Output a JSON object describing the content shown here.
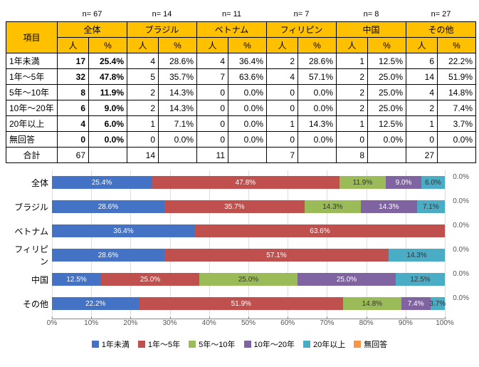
{
  "table": {
    "item_header": "項目",
    "groups": [
      {
        "name": "全体",
        "n": "n= 67",
        "people": "人",
        "pct": "%"
      },
      {
        "name": "ブラジル",
        "n": "n= 14",
        "people": "人",
        "pct": "%"
      },
      {
        "name": "ベトナム",
        "n": "n= 11",
        "people": "人",
        "pct": "%"
      },
      {
        "name": "フィリピン",
        "n": "n= 7",
        "people": "人",
        "pct": "%"
      },
      {
        "name": "中国",
        "n": "n= 8",
        "people": "人",
        "pct": "%"
      },
      {
        "name": "その他",
        "n": "n= 27",
        "people": "人",
        "pct": "%"
      }
    ],
    "rows": [
      {
        "label": "1年未満",
        "cells": [
          "17",
          "25.4%",
          "4",
          "28.6%",
          "4",
          "36.4%",
          "2",
          "28.6%",
          "1",
          "12.5%",
          "6",
          "22.2%"
        ]
      },
      {
        "label": "1年～5年",
        "cells": [
          "32",
          "47.8%",
          "5",
          "35.7%",
          "7",
          "63.6%",
          "4",
          "57.1%",
          "2",
          "25.0%",
          "14",
          "51.9%"
        ]
      },
      {
        "label": "5年～10年",
        "cells": [
          "8",
          "11.9%",
          "2",
          "14.3%",
          "0",
          "0.0%",
          "0",
          "0.0%",
          "2",
          "25.0%",
          "4",
          "14.8%"
        ]
      },
      {
        "label": "10年～20年",
        "cells": [
          "6",
          "9.0%",
          "2",
          "14.3%",
          "0",
          "0.0%",
          "0",
          "0.0%",
          "2",
          "25.0%",
          "2",
          "7.4%"
        ]
      },
      {
        "label": "20年以上",
        "cells": [
          "4",
          "6.0%",
          "1",
          "7.1%",
          "0",
          "0.0%",
          "1",
          "14.3%",
          "1",
          "12.5%",
          "1",
          "3.7%"
        ]
      },
      {
        "label": "無回答",
        "cells": [
          "0",
          "0.0%",
          "0",
          "0.0%",
          "0",
          "0.0%",
          "0",
          "0.0%",
          "0",
          "0.0%",
          "0",
          "0.0%"
        ]
      }
    ],
    "total_label": "合計",
    "totals": [
      "67",
      "",
      "14",
      "",
      "11",
      "",
      "7",
      "",
      "8",
      "",
      "27",
      ""
    ]
  },
  "chart": {
    "colors": {
      "s1": "#4472c4",
      "s2": "#ed7d31",
      "s3": "#a5a5a5",
      "s4": "#70ad47",
      "s5": "#5b9bd5",
      "s6": "#ffc000",
      "b1": "#4472c4",
      "b2": "#c0504d",
      "b3": "#9bbb59",
      "b4": "#8064a2",
      "b5": "#4bacc6",
      "b6": "#f79646"
    },
    "series_labels": [
      "1年未満",
      "1年～5年",
      "5年～10年",
      "10年～20年",
      "20年以上",
      "無回答"
    ],
    "categories": [
      {
        "label": "全体",
        "values": [
          25.4,
          47.8,
          11.9,
          9.0,
          6.0,
          0.0
        ]
      },
      {
        "label": "ブラジル",
        "values": [
          28.6,
          35.7,
          14.3,
          14.3,
          7.1,
          0.0
        ]
      },
      {
        "label": "ベトナム",
        "values": [
          36.4,
          63.6,
          0.0,
          0.0,
          0.0,
          0.0
        ]
      },
      {
        "label": "フィリピン",
        "values": [
          28.6,
          57.1,
          0.0,
          0.0,
          14.3,
          0.0
        ]
      },
      {
        "label": "中国",
        "values": [
          12.5,
          25.0,
          25.0,
          25.0,
          12.5,
          0.0
        ]
      },
      {
        "label": "その他",
        "values": [
          22.2,
          51.9,
          14.8,
          7.4,
          3.7,
          0.0
        ]
      }
    ],
    "ticks": [
      0,
      10,
      20,
      30,
      40,
      50,
      60,
      70,
      80,
      90,
      100
    ]
  }
}
